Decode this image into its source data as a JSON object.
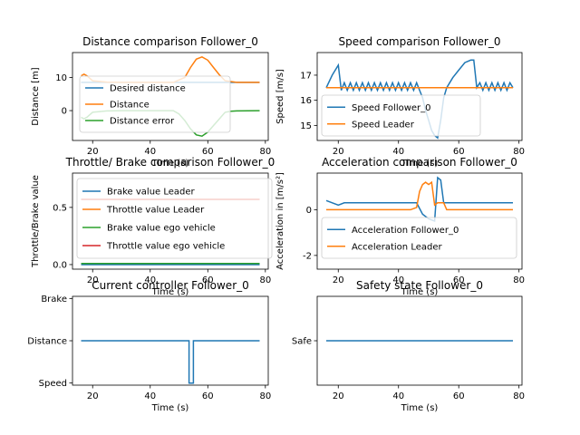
{
  "chart_data": [
    {
      "id": "p1",
      "type": "line",
      "title": "Distance comparison Follower_0",
      "xlabel": "Time (s)",
      "ylabel": "Distance [m]",
      "xlim": [
        13,
        81
      ],
      "ylim": [
        -9,
        17.5
      ],
      "xticks": [
        20,
        40,
        60,
        80
      ],
      "yticks": [
        0,
        10
      ],
      "legend": "lower-left",
      "series": [
        {
          "name": "Desired distance",
          "color": "#1f77b4",
          "x": [
            16,
            78
          ],
          "y": [
            8.5,
            8.5
          ]
        },
        {
          "name": "Distance",
          "color": "#ff7f0e",
          "x": [
            16,
            17,
            18,
            20,
            25,
            30,
            40,
            48,
            52,
            54,
            56,
            58,
            60,
            62,
            64,
            66,
            70,
            78
          ],
          "y": [
            10.5,
            11,
            10.5,
            9,
            8.6,
            8.5,
            8.5,
            8.5,
            10,
            13,
            15.5,
            16.2,
            15.2,
            13,
            10.8,
            9,
            8.5,
            8.5
          ]
        },
        {
          "name": "Distance error",
          "color": "#2ca02c",
          "x": [
            16,
            17,
            18,
            20,
            25,
            30,
            40,
            48,
            50,
            52,
            54,
            56,
            58,
            60,
            62,
            64,
            66,
            68,
            70,
            78
          ],
          "y": [
            -2,
            -2.5,
            -2,
            -0.5,
            -0.1,
            0,
            0,
            0,
            -1,
            -3,
            -5.5,
            -7.3,
            -7.7,
            -6.5,
            -4.5,
            -2.5,
            -0.5,
            -0.2,
            -0.1,
            0
          ]
        }
      ]
    },
    {
      "id": "p2",
      "type": "line",
      "title": "Speed comparison Follower_0",
      "xlabel": "Time (s)",
      "ylabel": "Speed [m/s]",
      "xlim": [
        13,
        81
      ],
      "ylim": [
        14.4,
        17.9
      ],
      "xticks": [
        20,
        40,
        60,
        80
      ],
      "yticks": [
        15,
        16,
        17
      ],
      "legend": "lower-left",
      "series": [
        {
          "name": "Speed Follower_0",
          "color": "#1f77b4",
          "x": [
            16,
            18,
            20,
            21,
            22,
            23,
            24,
            25,
            26,
            27,
            28,
            29,
            30,
            31,
            32,
            33,
            34,
            35,
            36,
            37,
            38,
            39,
            40,
            41,
            42,
            43,
            44,
            45,
            46,
            47,
            48,
            49,
            50,
            51,
            52,
            53,
            54,
            55,
            56,
            58,
            60,
            62,
            64,
            65,
            66,
            67,
            68,
            69,
            70,
            71,
            72,
            73,
            74,
            75,
            76,
            77,
            78
          ],
          "y": [
            16.5,
            17,
            17.4,
            16.4,
            16.7,
            16.4,
            16.7,
            16.4,
            16.7,
            16.4,
            16.7,
            16.4,
            16.7,
            16.4,
            16.7,
            16.4,
            16.7,
            16.4,
            16.7,
            16.4,
            16.7,
            16.4,
            16.7,
            16.4,
            16.7,
            16.4,
            16.7,
            16.4,
            16.7,
            16.4,
            16.1,
            15.6,
            15.2,
            14.8,
            14.6,
            14.5,
            15.2,
            16.1,
            16.5,
            16.9,
            17.2,
            17.5,
            17.6,
            17.6,
            16.5,
            16.7,
            16.4,
            16.7,
            16.4,
            16.7,
            16.4,
            16.7,
            16.4,
            16.7,
            16.4,
            16.7,
            16.5
          ]
        },
        {
          "name": "Speed Leader",
          "color": "#ff7f0e",
          "x": [
            16,
            78
          ],
          "y": [
            16.5,
            16.5
          ]
        }
      ]
    },
    {
      "id": "p3",
      "type": "line",
      "title": "Throttle/ Brake comparison Follower_0",
      "xlabel": "Time (s)",
      "ylabel": "Throttle/Brake value",
      "xlim": [
        13,
        81
      ],
      "ylim": [
        -0.04,
        0.8
      ],
      "xticks": [
        20,
        40,
        60,
        80
      ],
      "yticks": [
        0.0,
        0.5
      ],
      "legend": "upper-left",
      "series": [
        {
          "name": "Brake value Leader",
          "color": "#1f77b4",
          "x": [
            16,
            78
          ],
          "y": [
            0,
            0
          ]
        },
        {
          "name": "Throttle value Leader",
          "color": "#ff7f0e",
          "x": [
            16,
            78
          ],
          "y": [
            0.57,
            0.57
          ]
        },
        {
          "name": "Brake value ego vehicle",
          "color": "#2ca02c",
          "x": [
            16,
            78
          ],
          "y": [
            0.01,
            0.01
          ]
        },
        {
          "name": "Throttle value ego vehicle",
          "color": "#d62728",
          "x": [
            16,
            78
          ],
          "y": [
            0.57,
            0.57
          ]
        }
      ]
    },
    {
      "id": "p4",
      "type": "line",
      "title": "Acceleration comparison Follower_0",
      "xlabel": "Time (s)",
      "ylabel": "Acceleration in [m/s²]",
      "xlim": [
        13,
        81
      ],
      "ylim": [
        -2.6,
        1.6
      ],
      "xticks": [
        20,
        40,
        60,
        80
      ],
      "yticks": [
        -2,
        0
      ],
      "legend": "lower-left",
      "series": [
        {
          "name": "Acceleration Follower_0",
          "color": "#1f77b4",
          "x": [
            16,
            20,
            22,
            24,
            26,
            28,
            30,
            32,
            34,
            36,
            38,
            40,
            42,
            44,
            46,
            48,
            50,
            52,
            53,
            54,
            55,
            56,
            58,
            60,
            62,
            64,
            66,
            68,
            70,
            72,
            74,
            76,
            78
          ],
          "y": [
            0.4,
            0.2,
            0.3,
            0.3,
            0.3,
            0.3,
            0.3,
            0.3,
            0.3,
            0.3,
            0.3,
            0.3,
            0.3,
            0.3,
            0.3,
            -0.2,
            -0.4,
            -0.5,
            1.4,
            1.3,
            0.3,
            0.3,
            0.3,
            0.3,
            0.3,
            0.3,
            0.3,
            0.3,
            0.3,
            0.3,
            0.3,
            0.3,
            0.3
          ]
        },
        {
          "name": "Acceleration Leader",
          "color": "#ff7f0e",
          "x": [
            16,
            44,
            46,
            47,
            48,
            49,
            50,
            51,
            52,
            53,
            54,
            55,
            56,
            58,
            60,
            78
          ],
          "y": [
            0,
            0,
            0.1,
            0.8,
            1.1,
            1.2,
            1.1,
            1.2,
            0.2,
            0.3,
            0.3,
            0.3,
            0,
            0,
            0,
            0
          ]
        }
      ]
    },
    {
      "id": "p5",
      "type": "line",
      "title": "Current controller Follower_0",
      "xlabel": "Time (s)",
      "ylabel": "",
      "xlim": [
        13,
        81
      ],
      "ylim": [
        -0.05,
        2.05
      ],
      "xticks": [
        20,
        40,
        60,
        80
      ],
      "ycat": [
        "Speed",
        "Distance",
        "Brake"
      ],
      "series": [
        {
          "color": "#1f77b4",
          "x": [
            16,
            53.5,
            53.5,
            55,
            55,
            78
          ],
          "y": [
            1,
            1,
            0,
            0,
            1,
            1
          ]
        }
      ]
    },
    {
      "id": "p6",
      "type": "line",
      "title": "Safety state Follower_0",
      "xlabel": "Time (s)",
      "ylabel": "",
      "xlim": [
        13,
        81
      ],
      "ylim": [
        -1,
        1
      ],
      "xticks": [
        20,
        40,
        60,
        80
      ],
      "ycat": [
        "Safe"
      ],
      "series": [
        {
          "color": "#1f77b4",
          "x": [
            16,
            78
          ],
          "y": [
            0,
            0
          ]
        }
      ]
    }
  ]
}
